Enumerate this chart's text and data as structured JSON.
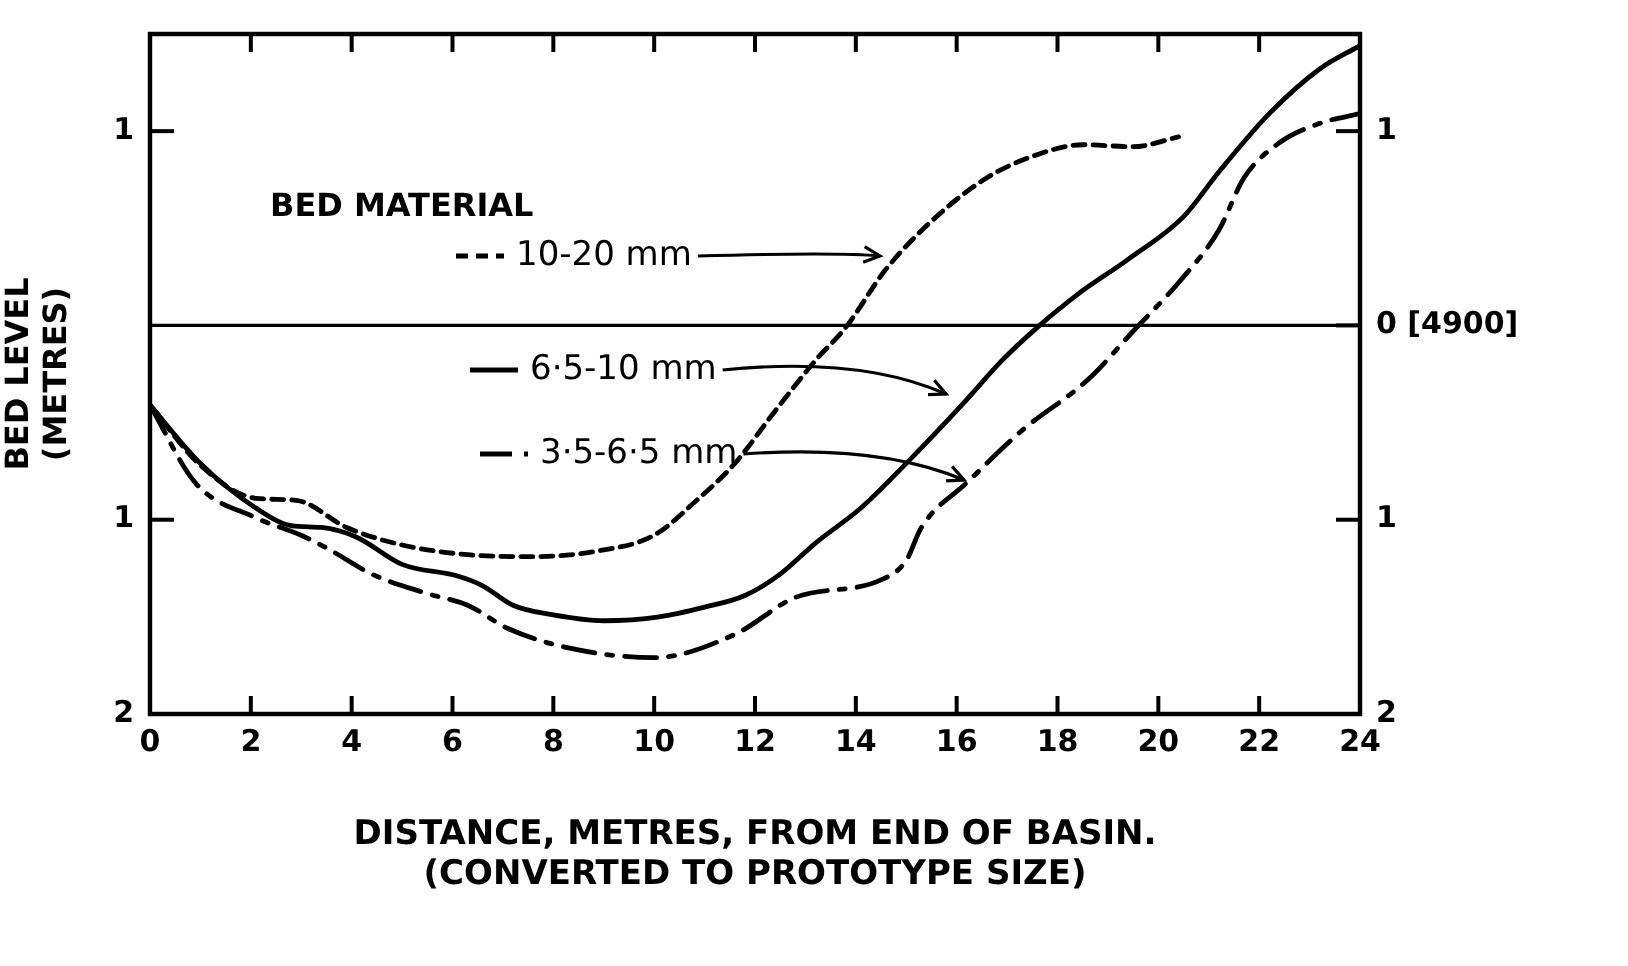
{
  "chart_data": {
    "type": "line",
    "xlabel": "DISTANCE, METRES, FROM END OF BASIN.\n(CONVERTED TO PROTOTYPE SIZE)",
    "ylabel": "BED LEVEL\n(METRES)",
    "legend_title": "BED MATERIAL",
    "legend": "top left",
    "grid": false,
    "marker": "none",
    "xlim": [
      0,
      24
    ],
    "xticks": [
      0,
      2,
      4,
      6,
      8,
      10,
      12,
      14,
      16,
      18,
      20,
      22,
      24
    ],
    "ylim": [
      -2,
      1.5
    ],
    "yticks": [
      {
        "value": 1,
        "label": "1"
      },
      {
        "value": -1,
        "label": "1"
      },
      {
        "value": -2,
        "label": "2"
      }
    ],
    "y2lim": [
      -2,
      1.5
    ],
    "y2ticks": [
      {
        "value": 1,
        "label": "1"
      },
      {
        "value": 0,
        "label": "0 [4900]"
      },
      {
        "value": -1,
        "label": "1"
      },
      {
        "value": -2,
        "label": "2"
      }
    ],
    "ref_lines": [
      {
        "axis": "y",
        "value": 0,
        "color": "#000000"
      }
    ],
    "series": [
      {
        "name": "10-20 mm",
        "color": "#000000",
        "line_style": "dashed",
        "x": [
          0,
          1,
          2.1,
          2.9,
          3.9,
          5,
          6.3,
          7.6,
          8.9,
          10,
          10.8,
          11.6,
          12.4,
          13.2,
          13.8,
          14.6,
          15.6,
          16.6,
          17.5,
          18.5,
          19.5,
          20.4
        ],
        "values": [
          -0.41,
          -0.72,
          -0.89,
          -0.9,
          -1.04,
          -1.13,
          -1.18,
          -1.19,
          -1.16,
          -1.08,
          -0.91,
          -0.71,
          -0.44,
          -0.18,
          -0.01,
          0.29,
          0.56,
          0.76,
          0.87,
          0.93,
          0.92,
          0.97
        ]
      },
      {
        "name": "6·5-10 mm",
        "color": "#000000",
        "line_style": "solid",
        "x": [
          0,
          1,
          2.1,
          2.8,
          3.4,
          4.1,
          5,
          6.1,
          6.6,
          7.2,
          8,
          9,
          10.1,
          11,
          11.8,
          12.5,
          13.2,
          14.1,
          15,
          16.1,
          16.9,
          17.6,
          18.4,
          19.4,
          20.5,
          21.2,
          22.2,
          23.2,
          24
        ],
        "values": [
          -0.41,
          -0.71,
          -0.94,
          -1.03,
          -1.04,
          -1.09,
          -1.23,
          -1.29,
          -1.34,
          -1.44,
          -1.49,
          -1.52,
          -1.5,
          -1.45,
          -1.39,
          -1.28,
          -1.12,
          -0.94,
          -0.71,
          -0.41,
          -0.18,
          -0.01,
          0.16,
          0.34,
          0.56,
          0.79,
          1.09,
          1.32,
          1.44
        ]
      },
      {
        "name": "3·5-6·5 mm",
        "color": "#000000",
        "line_style": "dashdot",
        "x": [
          0,
          0.9,
          2.1,
          3,
          3.6,
          4.4,
          5.5,
          6.3,
          7.1,
          8.3,
          10,
          11.6,
          12.8,
          14.5,
          15,
          15.3,
          16.2,
          17.3,
          18.6,
          19.5,
          20.4,
          21.2,
          21.7,
          22.4,
          23.2,
          24
        ],
        "values": [
          -0.41,
          -0.81,
          -0.99,
          -1.08,
          -1.16,
          -1.28,
          -1.38,
          -1.44,
          -1.56,
          -1.66,
          -1.71,
          -1.59,
          -1.4,
          -1.31,
          -1.21,
          -1.04,
          -0.81,
          -0.54,
          -0.28,
          -0.03,
          0.22,
          0.49,
          0.76,
          0.94,
          1.04,
          1.09
        ]
      }
    ]
  }
}
